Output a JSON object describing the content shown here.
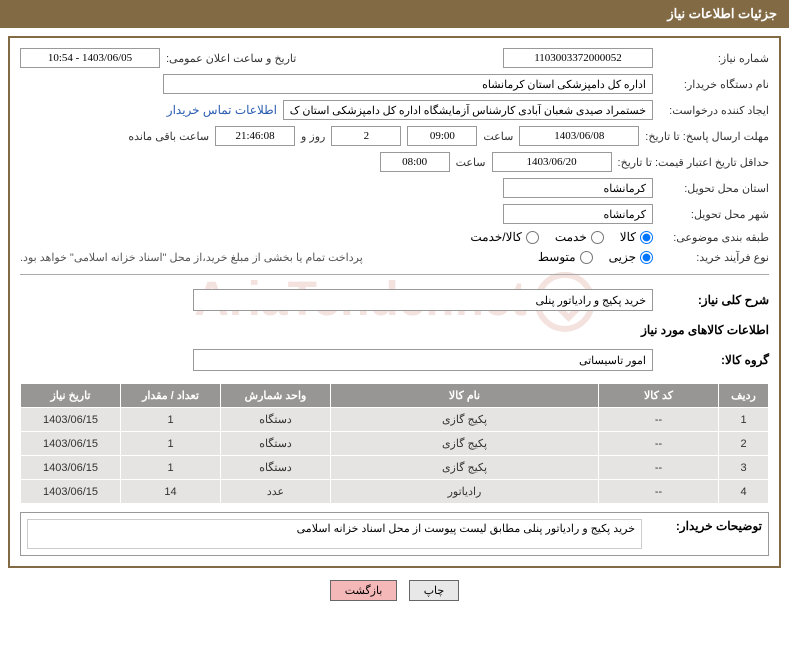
{
  "header_title": "جزئیات اطلاعات نیاز",
  "fields": {
    "need_number_label": "شماره نیاز:",
    "need_number": "1103003372000052",
    "announce_date_label": "تاریخ و ساعت اعلان عمومی:",
    "announce_date": "1403/06/05 - 10:54",
    "buyer_org_label": "نام دستگاه خریدار:",
    "buyer_org": "اداره کل دامپزشکی استان کرمانشاه",
    "requester_label": "ایجاد کننده درخواست:",
    "requester": "خستمراد صیدی شعبان آبادی کارشناس آزمایشگاه اداره کل دامپزشکی استان ک",
    "contact_link": "اطلاعات تماس خریدار",
    "deadline_label": "مهلت ارسال پاسخ: تا تاریخ:",
    "deadline_date": "1403/06/08",
    "time_label": "ساعت",
    "deadline_time": "09:00",
    "days_remaining": "2",
    "days_label": "روز و",
    "time_remaining": "21:46:08",
    "remaining_label": "ساعت باقی مانده",
    "validity_label": "حداقل تاریخ اعتبار قیمت: تا تاریخ:",
    "validity_date": "1403/06/20",
    "validity_time": "08:00",
    "province_label": "استان محل تحویل:",
    "province": "کرمانشاه",
    "city_label": "شهر محل تحویل:",
    "city": "کرمانشاه",
    "category_label": "طبقه بندی موضوعی:",
    "radio_goods": "کالا",
    "radio_service": "خدمت",
    "radio_both": "کالا/خدمت",
    "process_label": "نوع فرآیند خرید:",
    "radio_small": "جزیی",
    "radio_medium": "متوسط",
    "payment_note": "پرداخت تمام یا بخشی از مبلغ خرید،از محل \"اسناد خزانه اسلامی\" خواهد بود.",
    "general_desc_label": "شرح کلی نیاز:",
    "general_desc": "خرید پکیج و رادیاتور پنلی",
    "items_section_title": "اطلاعات کالاهای مورد نیاز",
    "goods_group_label": "گروه کالا:",
    "goods_group": "امور تاسیساتی",
    "buyer_notes_label": "توضیحات خریدار:",
    "buyer_notes": "خرید پکیج و رادیاتور پنلی مطابق لیست پیوست از محل اسناد خزانه اسلامی"
  },
  "table": {
    "headers": {
      "row": "ردیف",
      "code": "کد کالا",
      "name": "نام کالا",
      "unit": "واحد شمارش",
      "qty": "تعداد / مقدار",
      "date": "تاریخ نیاز"
    },
    "rows": [
      {
        "row": "1",
        "code": "--",
        "name": "پکیج گازی",
        "unit": "دستگاه",
        "qty": "1",
        "date": "1403/06/15"
      },
      {
        "row": "2",
        "code": "--",
        "name": "پکیج گازی",
        "unit": "دستگاه",
        "qty": "1",
        "date": "1403/06/15"
      },
      {
        "row": "3",
        "code": "--",
        "name": "پکیج گازی",
        "unit": "دستگاه",
        "qty": "1",
        "date": "1403/06/15"
      },
      {
        "row": "4",
        "code": "--",
        "name": "رادیاتور",
        "unit": "عدد",
        "qty": "14",
        "date": "1403/06/15"
      }
    ]
  },
  "buttons": {
    "print": "چاپ",
    "back": "بازگشت"
  },
  "colors": {
    "header_bg": "#826a45",
    "table_header_bg": "#979694",
    "table_row_bg": "#e5e4e3",
    "link_color": "#2a5db0",
    "back_btn_bg": "#f5b8b8"
  }
}
